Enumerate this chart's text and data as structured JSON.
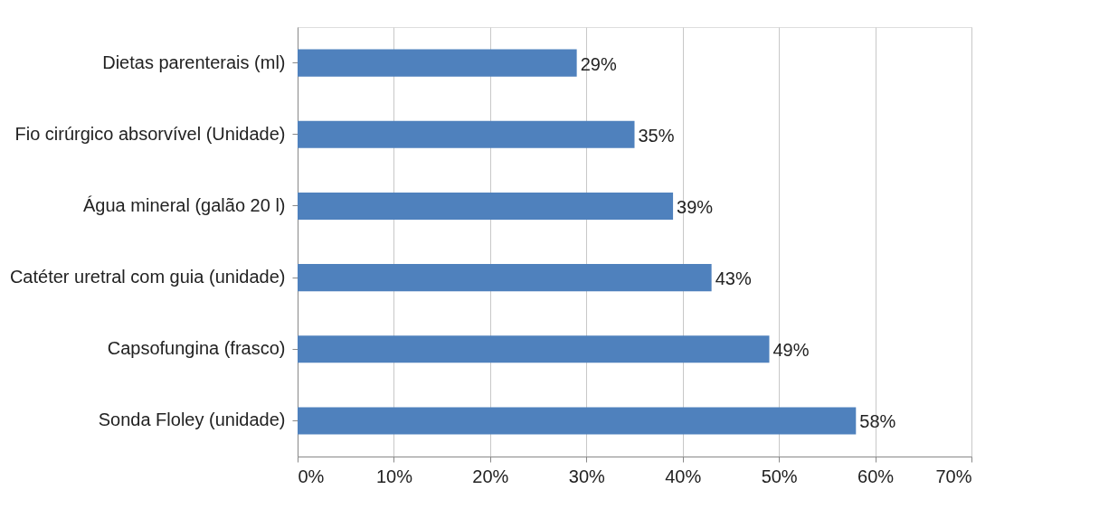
{
  "chart_data": {
    "type": "bar",
    "orientation": "horizontal",
    "categories": [
      "Dietas parenterais (ml)",
      "Fio cirúrgico absorvível (Unidade)",
      "Água mineral (galão 20 l)",
      "Catéter uretral com guia (unidade)",
      "Capsofungina (frasco)",
      "Sonda Floley (unidade)"
    ],
    "values": [
      29,
      35,
      39,
      43,
      49,
      58
    ],
    "value_labels": [
      "29%",
      "35%",
      "39%",
      "43%",
      "49%",
      "58%"
    ],
    "color": "#4f81bd",
    "xlim": [
      0,
      70
    ],
    "xticks": [
      {
        "value": 0,
        "label": "0%"
      },
      {
        "value": 10,
        "label": "10%"
      },
      {
        "value": 20,
        "label": "20%"
      },
      {
        "value": 30,
        "label": "30%"
      },
      {
        "value": 40,
        "label": "40%"
      },
      {
        "value": 50,
        "label": "50%"
      },
      {
        "value": 60,
        "label": "60%"
      },
      {
        "value": 70,
        "label": "70%"
      }
    ],
    "grid": "x"
  }
}
